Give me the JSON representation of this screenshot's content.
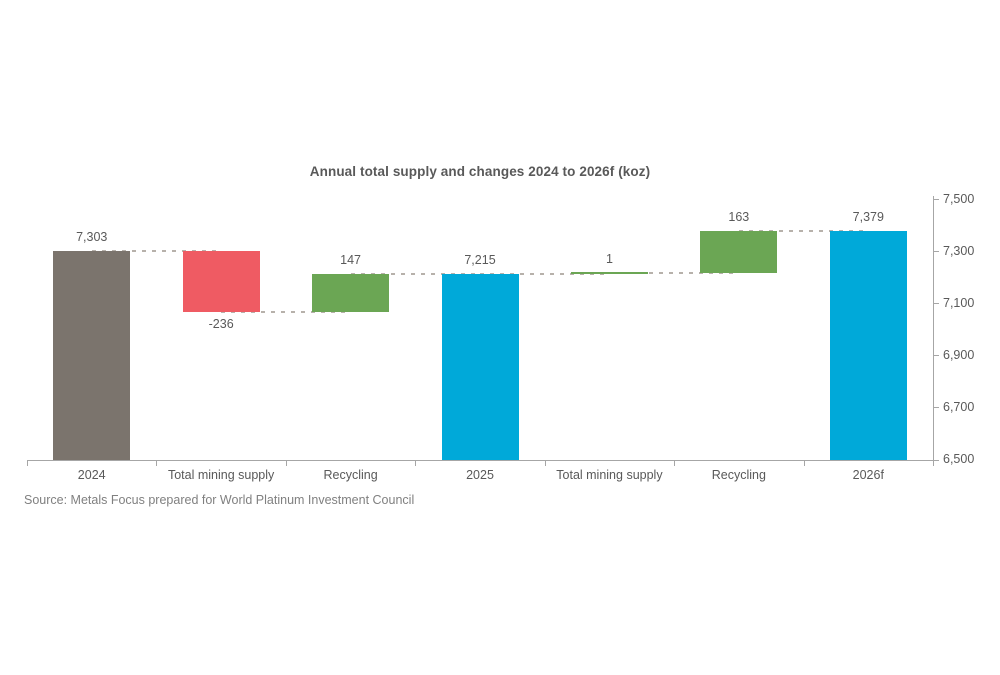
{
  "chart_data": {
    "type": "bar",
    "subtype": "waterfall",
    "title": "Annual total supply and changes 2024 to 2026f (koz)",
    "source": "Source: Metals Focus prepared for World Platinum Investment Council",
    "categories": [
      "2024",
      "Total mining supply",
      "Recycling",
      "2025",
      "Total mining supply",
      "Recycling",
      "2026f"
    ],
    "bars": [
      {
        "label": "2024",
        "kind": "total",
        "value": 7303,
        "display": "7,303",
        "color": "#7b746d"
      },
      {
        "label": "Total mining supply",
        "kind": "decrease",
        "value": -236,
        "display": "-236",
        "color": "#ef5b63"
      },
      {
        "label": "Recycling",
        "kind": "increase",
        "value": 147,
        "display": "147",
        "color": "#6ba654"
      },
      {
        "label": "2025",
        "kind": "total",
        "value": 7215,
        "display": "7,215",
        "color": "#00a9d9"
      },
      {
        "label": "Total mining supply",
        "kind": "increase",
        "value": 1,
        "display": "1",
        "color": "#6ba654"
      },
      {
        "label": "Recycling",
        "kind": "increase",
        "value": 163,
        "display": "163",
        "color": "#6ba654"
      },
      {
        "label": "2026f",
        "kind": "total",
        "value": 7379,
        "display": "7,379",
        "color": "#00a9d9"
      }
    ],
    "y_axis": {
      "min": 6500,
      "max": 7500,
      "step": 200,
      "tick_labels": [
        "6,500",
        "6,700",
        "6,900",
        "7,100",
        "7,300",
        "7,500"
      ],
      "side": "right"
    },
    "grid": false,
    "legend": "none",
    "colors": {
      "total_2024": "#7b746d",
      "total_blue": "#00a9d9",
      "decrease": "#ef5b63",
      "increase": "#6ba654",
      "connector": "#b7b1ab",
      "axis": "#a6a6a6",
      "text": "#595959",
      "source_text": "#808080"
    }
  }
}
